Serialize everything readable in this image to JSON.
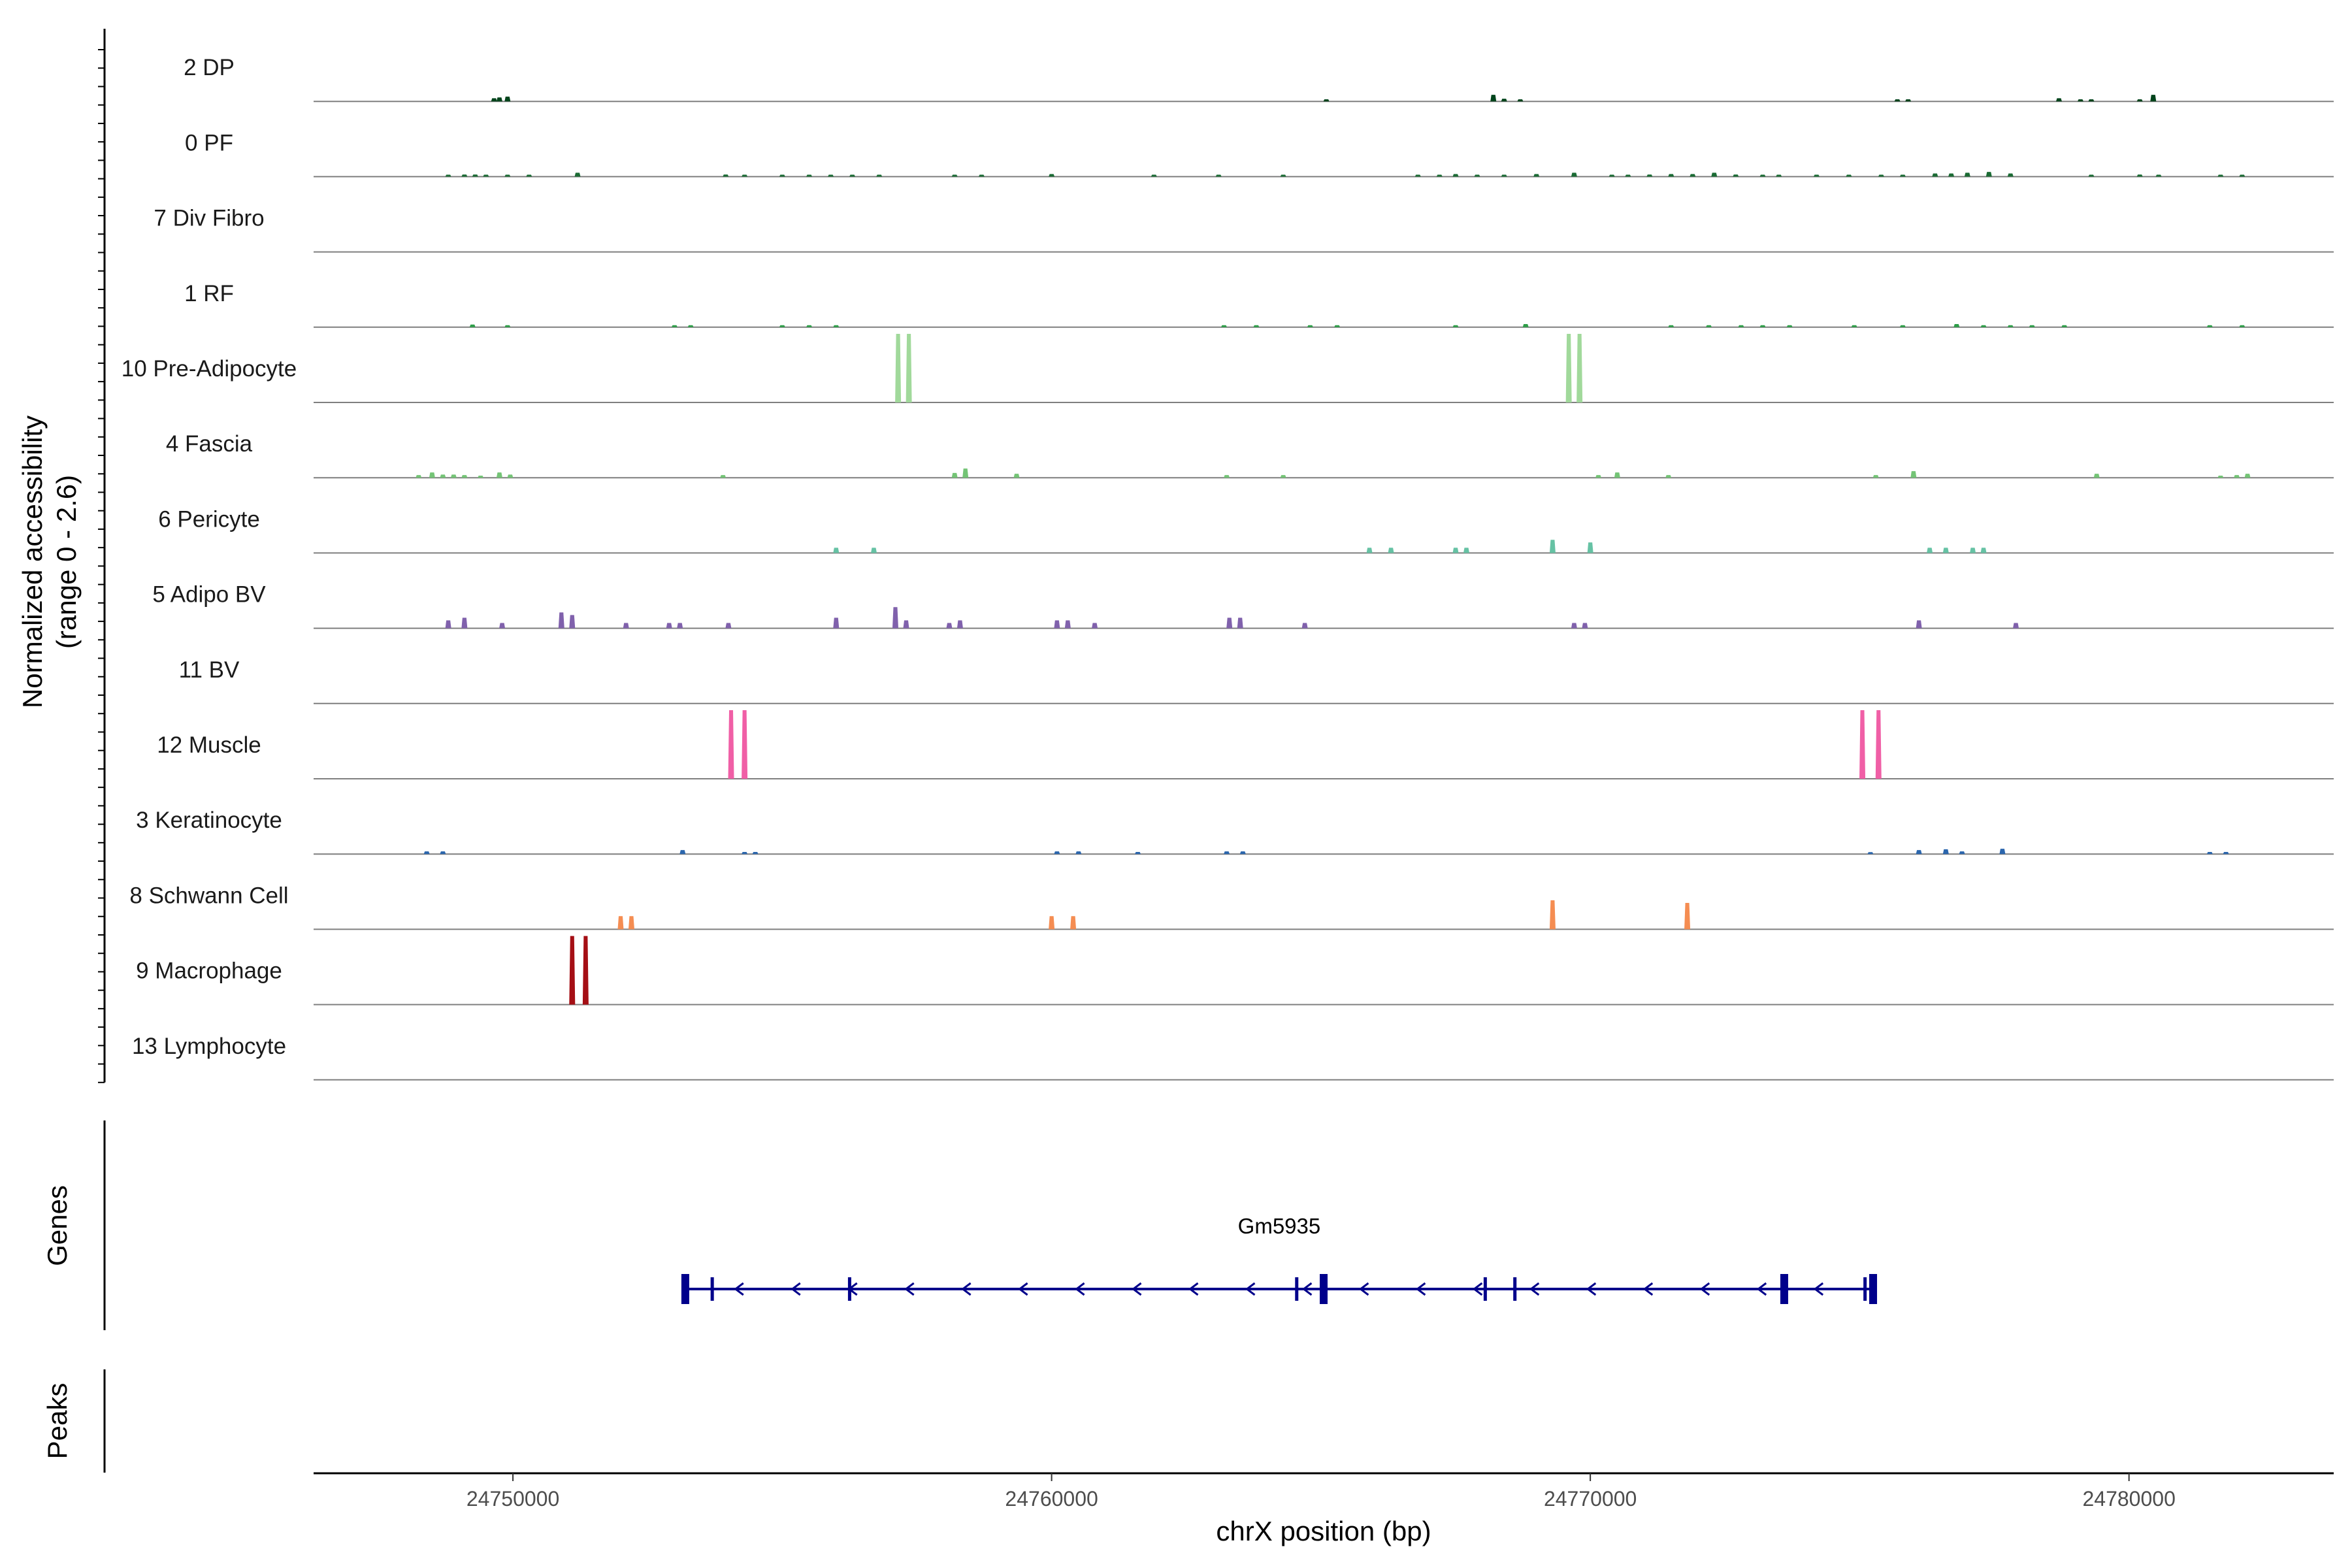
{
  "chart_data": {
    "type": "coverage-track",
    "ylabel_line1": "Normalized accessibility",
    "ylabel_line2": "(range 0 - 2.6)",
    "ylim": [
      0,
      2.6
    ],
    "xlabel": "chrX position (bp)",
    "xlim": [
      24746300,
      24783800
    ],
    "xticks": [
      24750000,
      24760000,
      24770000,
      24780000
    ],
    "xtick_labels": [
      "24750000",
      "24760000",
      "24770000",
      "24780000"
    ],
    "tracks": [
      {
        "name": "2 DP",
        "color": "#00441b",
        "peaks": [
          [
            24749650,
            0.12
          ],
          [
            24749900,
            0.18
          ],
          [
            24749750,
            0.15
          ],
          [
            24765100,
            0.08
          ],
          [
            24768200,
            0.25
          ],
          [
            24768400,
            0.1
          ],
          [
            24768700,
            0.08
          ],
          [
            24775700,
            0.08
          ],
          [
            24775900,
            0.08
          ],
          [
            24778700,
            0.12
          ],
          [
            24779100,
            0.08
          ],
          [
            24779300,
            0.08
          ],
          [
            24780200,
            0.08
          ],
          [
            24780450,
            0.25
          ]
        ]
      },
      {
        "name": "0 PF",
        "color": "#1b6b34",
        "peaks": [
          [
            24748800,
            0.05
          ],
          [
            24749100,
            0.08
          ],
          [
            24749300,
            0.08
          ],
          [
            24749500,
            0.06
          ],
          [
            24749900,
            0.06
          ],
          [
            24750300,
            0.06
          ],
          [
            24751200,
            0.15
          ],
          [
            24753950,
            0.08
          ],
          [
            24754300,
            0.06
          ],
          [
            24755000,
            0.06
          ],
          [
            24755500,
            0.06
          ],
          [
            24755900,
            0.06
          ],
          [
            24756300,
            0.06
          ],
          [
            24756800,
            0.06
          ],
          [
            24758200,
            0.05
          ],
          [
            24758700,
            0.05
          ],
          [
            24760000,
            0.1
          ],
          [
            24761900,
            0.05
          ],
          [
            24763100,
            0.05
          ],
          [
            24764300,
            0.05
          ],
          [
            24766800,
            0.06
          ],
          [
            24767200,
            0.06
          ],
          [
            24767500,
            0.1
          ],
          [
            24767900,
            0.06
          ],
          [
            24768400,
            0.06
          ],
          [
            24769000,
            0.1
          ],
          [
            24769700,
            0.15
          ],
          [
            24770400,
            0.06
          ],
          [
            24770700,
            0.06
          ],
          [
            24771100,
            0.08
          ],
          [
            24771500,
            0.1
          ],
          [
            24771900,
            0.1
          ],
          [
            24772300,
            0.15
          ],
          [
            24772700,
            0.08
          ],
          [
            24773200,
            0.06
          ],
          [
            24773500,
            0.06
          ],
          [
            24774200,
            0.06
          ],
          [
            24774800,
            0.06
          ],
          [
            24775400,
            0.06
          ],
          [
            24775800,
            0.06
          ],
          [
            24776400,
            0.12
          ],
          [
            24776700,
            0.12
          ],
          [
            24777000,
            0.15
          ],
          [
            24777400,
            0.18
          ],
          [
            24777800,
            0.12
          ],
          [
            24779300,
            0.05
          ],
          [
            24780200,
            0.08
          ],
          [
            24780550,
            0.06
          ],
          [
            24781700,
            0.06
          ],
          [
            24782100,
            0.06
          ]
        ]
      },
      {
        "name": "7 Div Fibro",
        "color": "#238b45",
        "peaks": []
      },
      {
        "name": "1 RF",
        "color": "#2d9e48",
        "peaks": [
          [
            24749250,
            0.1
          ],
          [
            24749900,
            0.06
          ],
          [
            24753000,
            0.06
          ],
          [
            24753300,
            0.06
          ],
          [
            24755000,
            0.05
          ],
          [
            24755500,
            0.06
          ],
          [
            24756000,
            0.06
          ],
          [
            24763200,
            0.04
          ],
          [
            24763800,
            0.05
          ],
          [
            24764800,
            0.04
          ],
          [
            24765300,
            0.04
          ],
          [
            24767500,
            0.06
          ],
          [
            24768800,
            0.12
          ],
          [
            24771500,
            0.06
          ],
          [
            24772200,
            0.06
          ],
          [
            24772800,
            0.06
          ],
          [
            24773200,
            0.06
          ],
          [
            24773700,
            0.06
          ],
          [
            24774900,
            0.06
          ],
          [
            24775800,
            0.05
          ],
          [
            24776800,
            0.12
          ],
          [
            24777300,
            0.06
          ],
          [
            24777800,
            0.06
          ],
          [
            24778200,
            0.06
          ],
          [
            24778800,
            0.06
          ],
          [
            24781500,
            0.05
          ],
          [
            24782100,
            0.05
          ]
        ]
      },
      {
        "name": "10 Pre-Adipocyte",
        "color": "#a1d99b",
        "peaks": [
          [
            24757150,
            2.6
          ],
          [
            24757350,
            2.6
          ],
          [
            24769600,
            2.6
          ],
          [
            24769800,
            2.6
          ]
        ]
      },
      {
        "name": "4 Fascia",
        "color": "#74c476",
        "peaks": [
          [
            24748250,
            0.1
          ],
          [
            24748500,
            0.2
          ],
          [
            24748700,
            0.12
          ],
          [
            24748900,
            0.12
          ],
          [
            24749100,
            0.1
          ],
          [
            24749400,
            0.08
          ],
          [
            24749750,
            0.2
          ],
          [
            24749950,
            0.12
          ],
          [
            24753900,
            0.1
          ],
          [
            24758200,
            0.18
          ],
          [
            24758400,
            0.35
          ],
          [
            24759350,
            0.15
          ],
          [
            24763250,
            0.1
          ],
          [
            24764300,
            0.1
          ],
          [
            24770150,
            0.1
          ],
          [
            24770500,
            0.2
          ],
          [
            24771450,
            0.1
          ],
          [
            24775300,
            0.1
          ],
          [
            24776000,
            0.25
          ],
          [
            24779400,
            0.15
          ],
          [
            24781700,
            0.08
          ],
          [
            24782000,
            0.1
          ],
          [
            24782200,
            0.15
          ]
        ]
      },
      {
        "name": "6 Pericyte",
        "color": "#66c2a4",
        "peaks": [
          [
            24756000,
            0.2
          ],
          [
            24756700,
            0.2
          ],
          [
            24765900,
            0.2
          ],
          [
            24766300,
            0.2
          ],
          [
            24767500,
            0.2
          ],
          [
            24767700,
            0.2
          ],
          [
            24769300,
            0.5
          ],
          [
            24770000,
            0.4
          ],
          [
            24776300,
            0.2
          ],
          [
            24776600,
            0.2
          ],
          [
            24777100,
            0.2
          ],
          [
            24777300,
            0.2
          ]
        ]
      },
      {
        "name": "5 Adipo BV",
        "color": "#8061ac",
        "peaks": [
          [
            24748800,
            0.3
          ],
          [
            24749100,
            0.4
          ],
          [
            24749800,
            0.2
          ],
          [
            24750900,
            0.6
          ],
          [
            24751100,
            0.5
          ],
          [
            24752100,
            0.2
          ],
          [
            24752900,
            0.2
          ],
          [
            24753100,
            0.2
          ],
          [
            24754000,
            0.2
          ],
          [
            24756000,
            0.4
          ],
          [
            24757100,
            0.8
          ],
          [
            24757300,
            0.3
          ],
          [
            24758100,
            0.2
          ],
          [
            24758300,
            0.3
          ],
          [
            24760100,
            0.3
          ],
          [
            24760300,
            0.3
          ],
          [
            24760800,
            0.2
          ],
          [
            24763300,
            0.4
          ],
          [
            24763500,
            0.4
          ],
          [
            24764700,
            0.2
          ],
          [
            24769700,
            0.2
          ],
          [
            24769900,
            0.2
          ],
          [
            24776100,
            0.3
          ],
          [
            24777900,
            0.2
          ]
        ]
      },
      {
        "name": "11 BV",
        "color": "#6a51a3",
        "peaks": []
      },
      {
        "name": "12 Muscle",
        "color": "#f05fa6",
        "peaks": [
          [
            24754050,
            2.6
          ],
          [
            24754300,
            2.6
          ],
          [
            24775050,
            2.6
          ],
          [
            24775350,
            2.6
          ]
        ]
      },
      {
        "name": "3 Keratinocyte",
        "color": "#2b66ad",
        "peaks": [
          [
            24748400,
            0.1
          ],
          [
            24748700,
            0.1
          ],
          [
            24753150,
            0.15
          ],
          [
            24754300,
            0.08
          ],
          [
            24754500,
            0.08
          ],
          [
            24760100,
            0.1
          ],
          [
            24760500,
            0.1
          ],
          [
            24761600,
            0.08
          ],
          [
            24763250,
            0.1
          ],
          [
            24763550,
            0.1
          ],
          [
            24775200,
            0.06
          ],
          [
            24776100,
            0.15
          ],
          [
            24776600,
            0.18
          ],
          [
            24776900,
            0.1
          ],
          [
            24777650,
            0.2
          ],
          [
            24781500,
            0.08
          ],
          [
            24781800,
            0.08
          ]
        ]
      },
      {
        "name": "8 Schwann Cell",
        "color": "#f58d52",
        "peaks": [
          [
            24752000,
            0.5
          ],
          [
            24752200,
            0.5
          ],
          [
            24760000,
            0.5
          ],
          [
            24760400,
            0.5
          ],
          [
            24769300,
            1.1
          ],
          [
            24771800,
            1.0
          ]
        ]
      },
      {
        "name": "9 Macrophage",
        "color": "#a50f15",
        "peaks": [
          [
            24751100,
            2.6
          ],
          [
            24751350,
            2.6
          ]
        ]
      },
      {
        "name": "13 Lymphocyte",
        "color": "#67000d",
        "peaks": []
      }
    ],
    "genes_panel_label": "Genes",
    "peaks_panel_label": "Peaks",
    "gene": {
      "name": "Gm5935",
      "strand": "-",
      "start": 24753150,
      "end": 24775300,
      "color": "#00008b",
      "exons": [
        24753200,
        24753700,
        24756250,
        24764550,
        24765050,
        24768050,
        24768600,
        24773600,
        24775100,
        24775250
      ]
    }
  }
}
